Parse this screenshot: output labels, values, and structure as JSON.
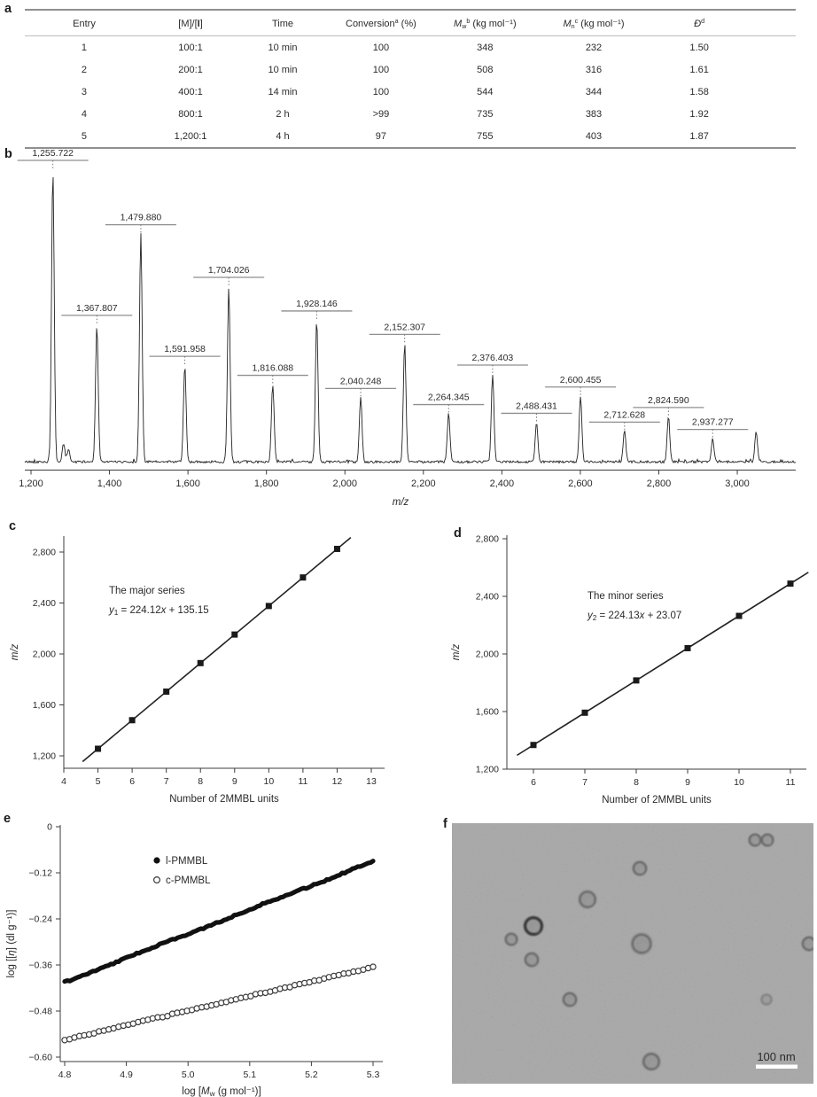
{
  "panel_labels": {
    "a": "a",
    "b": "b",
    "c": "c",
    "d": "d",
    "e": "e",
    "f": "f"
  },
  "table": {
    "headers": [
      [
        "Entry"
      ],
      [
        "[M]/[",
        {
          "t": "I",
          "b": 1
        },
        "]"
      ],
      [
        "Time"
      ],
      [
        "Conversion",
        {
          "t": "a",
          "sup": 1
        },
        " (%)"
      ],
      [
        {
          "t": "M",
          "i": 1
        },
        {
          "t": "w",
          "sub": 1
        },
        {
          "t": "b",
          "sup": 1
        },
        " (kg mol⁻¹)"
      ],
      [
        {
          "t": "M",
          "i": 1
        },
        {
          "t": "n",
          "sub": 1
        },
        {
          "t": "c",
          "sup": 1
        },
        " (kg mol⁻¹)"
      ],
      [
        {
          "t": "Đ",
          "i": 1
        },
        {
          "t": "d",
          "sup": 1
        }
      ]
    ],
    "rows": [
      [
        "1",
        "100:1",
        "10 min",
        "100",
        "348",
        "232",
        "1.50"
      ],
      [
        "2",
        "200:1",
        "10 min",
        "100",
        "508",
        "316",
        "1.61"
      ],
      [
        "3",
        "400:1",
        "14 min",
        "100",
        "544",
        "344",
        "1.58"
      ],
      [
        "4",
        "800:1",
        "2 h",
        ">99",
        "735",
        "383",
        "1.92"
      ],
      [
        "5",
        "1,200:1",
        "4 h",
        "97",
        "755",
        "403",
        "1.87"
      ]
    ]
  },
  "chart_data": [
    {
      "id": "b",
      "type": "line",
      "kind": "mass_spectrum",
      "xlabel": [
        {
          "t": "m/z",
          "i": 1
        }
      ],
      "xlim": [
        1184,
        3150
      ],
      "xticks": [
        {
          "v": 1200,
          "label": "1,200"
        },
        {
          "v": 1400,
          "label": "1,400"
        },
        {
          "v": 1600,
          "label": "1,600"
        },
        {
          "v": 1800,
          "label": "1,800"
        },
        {
          "v": 2000,
          "label": "2,000"
        },
        {
          "v": 2200,
          "label": "2,200"
        },
        {
          "v": 2400,
          "label": "2,400"
        },
        {
          "v": 2600,
          "label": "2,600"
        },
        {
          "v": 2800,
          "label": "2,800"
        },
        {
          "v": 3000,
          "label": "3,000"
        }
      ],
      "peaks": [
        {
          "mz": 1255.722,
          "h": 1.0,
          "label": "1,255.722"
        },
        {
          "mz": 1367.807,
          "h": 0.47,
          "label": "1,367.807"
        },
        {
          "mz": 1479.88,
          "h": 0.78,
          "label": "1,479.880"
        },
        {
          "mz": 1591.958,
          "h": 0.33,
          "label": "1,591.958"
        },
        {
          "mz": 1704.026,
          "h": 0.6,
          "label": "1,704.026"
        },
        {
          "mz": 1816.088,
          "h": 0.265,
          "label": "1,816.088"
        },
        {
          "mz": 1928.146,
          "h": 0.485,
          "label": "1,928.146"
        },
        {
          "mz": 2040.248,
          "h": 0.22,
          "label": "2,040.248"
        },
        {
          "mz": 2152.307,
          "h": 0.405,
          "label": "2,152.307"
        },
        {
          "mz": 2264.345,
          "h": 0.165,
          "label": "2,264.345"
        },
        {
          "mz": 2376.403,
          "h": 0.3,
          "label": "2,376.403"
        },
        {
          "mz": 2488.431,
          "h": 0.135,
          "label": "2,488.431"
        },
        {
          "mz": 2600.455,
          "h": 0.225,
          "label": "2,600.455"
        },
        {
          "mz": 2712.628,
          "h": 0.105,
          "label": "2,712.628"
        },
        {
          "mz": 2824.59,
          "h": 0.155,
          "label": "2,824.590"
        },
        {
          "mz": 2937.277,
          "h": 0.08,
          "label": "2,937.277"
        }
      ],
      "minor_peaks": [
        {
          "mz": 1283,
          "h": 0.06
        },
        {
          "mz": 1296,
          "h": 0.04
        },
        {
          "mz": 3048,
          "h": 0.1
        }
      ]
    },
    {
      "id": "c",
      "type": "scatter",
      "kind": "linear_fit",
      "annotation": "The major series",
      "equation": [
        {
          "t": "y",
          "i": 1
        },
        {
          "t": "1",
          "sub": 1
        },
        {
          "t": " = 224.12"
        },
        {
          "t": "x",
          "i": 1
        },
        {
          "t": " + 135.15"
        }
      ],
      "fit": {
        "slope": 224.12,
        "intercept": 135.15
      },
      "x": [
        5,
        6,
        7,
        8,
        9,
        10,
        11,
        12
      ],
      "y": [
        1255.722,
        1479.88,
        1704.026,
        1928.146,
        2152.307,
        2376.403,
        2600.455,
        2824.59
      ],
      "xticks": [
        {
          "v": 4,
          "label": "4"
        },
        {
          "v": 5,
          "label": "5"
        },
        {
          "v": 6,
          "label": "6"
        },
        {
          "v": 7,
          "label": "7"
        },
        {
          "v": 8,
          "label": "8"
        },
        {
          "v": 9,
          "label": "9"
        },
        {
          "v": 10,
          "label": "10"
        },
        {
          "v": 11,
          "label": "11"
        },
        {
          "v": 12,
          "label": "12"
        },
        {
          "v": 13,
          "label": "13"
        }
      ],
      "yticks": [
        {
          "v": 1200,
          "label": "1,200"
        },
        {
          "v": 1600,
          "label": "1,600"
        },
        {
          "v": 2000,
          "label": "2,000"
        },
        {
          "v": 2400,
          "label": "2,400"
        },
        {
          "v": 2800,
          "label": "2,800"
        }
      ],
      "xlabel": "Number of 2MMBL units",
      "ylabel": [
        {
          "t": "m/z",
          "i": 1
        }
      ],
      "xlim": [
        4,
        13
      ],
      "ylim": [
        1100,
        2925
      ]
    },
    {
      "id": "d",
      "type": "scatter",
      "kind": "linear_fit",
      "annotation": "The minor series",
      "equation": [
        {
          "t": "y",
          "i": 1
        },
        {
          "t": "2",
          "sub": 1
        },
        {
          "t": " = 224.13"
        },
        {
          "t": "x",
          "i": 1
        },
        {
          "t": " + 23.07"
        }
      ],
      "fit": {
        "slope": 224.13,
        "intercept": 23.07
      },
      "x": [
        6,
        7,
        8,
        9,
        10,
        11
      ],
      "y": [
        1367.807,
        1591.958,
        1816.088,
        2040.248,
        2264.345,
        2488.431
      ],
      "xticks": [
        {
          "v": 6,
          "label": "6"
        },
        {
          "v": 7,
          "label": "7"
        },
        {
          "v": 8,
          "label": "8"
        },
        {
          "v": 9,
          "label": "9"
        },
        {
          "v": 10,
          "label": "10"
        },
        {
          "v": 11,
          "label": "11"
        }
      ],
      "yticks": [
        {
          "v": 1200,
          "label": "1,200"
        },
        {
          "v": 1600,
          "label": "1,600"
        },
        {
          "v": 2000,
          "label": "2,000"
        },
        {
          "v": 2400,
          "label": "2,400"
        },
        {
          "v": 2800,
          "label": "2,800"
        }
      ],
      "xlabel": "Number of 2MMBL units",
      "ylabel": [
        {
          "t": "m/z",
          "i": 1
        }
      ],
      "xlim": [
        5.5,
        11.5
      ],
      "ylim": [
        1200,
        2800
      ]
    },
    {
      "id": "e",
      "type": "line",
      "kind": "mark_houwink",
      "legend": [
        {
          "marker": "filled-circle",
          "label": "l-PMMBL"
        },
        {
          "marker": "open-circle",
          "label": "c-PMMBL"
        }
      ],
      "series": [
        {
          "name": "l-PMMBL",
          "style": "filled-thick",
          "x0": 4.8,
          "y0": -0.405,
          "x1": 5.3,
          "y1": -0.09
        },
        {
          "name": "c-PMMBL",
          "style": "open-circles",
          "x0": 4.8,
          "y0": -0.555,
          "x1": 5.3,
          "y1": -0.365,
          "n_points": 64
        }
      ],
      "xticks": [
        {
          "v": 4.8,
          "label": "4.8"
        },
        {
          "v": 4.9,
          "label": "4.9"
        },
        {
          "v": 5.0,
          "label": "5.0"
        },
        {
          "v": 5.1,
          "label": "5.1"
        },
        {
          "v": 5.2,
          "label": "5.2"
        },
        {
          "v": 5.3,
          "label": "5.3"
        }
      ],
      "yticks": [
        {
          "v": 0,
          "label": "0"
        },
        {
          "v": -0.12,
          "label": "−0.12"
        },
        {
          "v": -0.24,
          "label": "−0.24"
        },
        {
          "v": -0.36,
          "label": "−0.36"
        },
        {
          "v": -0.48,
          "label": "−0.48"
        },
        {
          "v": -0.6,
          "label": "−0.60"
        }
      ],
      "xlabel": [
        "log [",
        {
          "t": "M",
          "i": 1
        },
        {
          "t": "w",
          "sub": 1
        },
        " (g mol⁻¹)]"
      ],
      "ylabel": [
        "log [[",
        {
          "t": "η",
          "i": 1
        },
        "] (dl g⁻¹)]"
      ],
      "xlim": [
        4.8,
        5.3
      ],
      "ylim": [
        -0.6,
        0
      ]
    }
  ],
  "tem": {
    "scale_bar_label": "100 nm",
    "particles": [
      [
        342,
        19,
        8,
        "n"
      ],
      [
        356,
        19,
        8,
        "n"
      ],
      [
        212,
        51,
        9,
        "n"
      ],
      [
        153,
        86,
        11,
        "n"
      ],
      [
        92,
        116,
        12,
        "dark"
      ],
      [
        67,
        131,
        8,
        "n"
      ],
      [
        90,
        154,
        9,
        "n"
      ],
      [
        214,
        136,
        13,
        "n"
      ],
      [
        403,
        136,
        9,
        "n"
      ],
      [
        133,
        199,
        9,
        "n"
      ],
      [
        355,
        199,
        7,
        "faint"
      ],
      [
        225,
        269,
        11,
        "n"
      ]
    ]
  }
}
